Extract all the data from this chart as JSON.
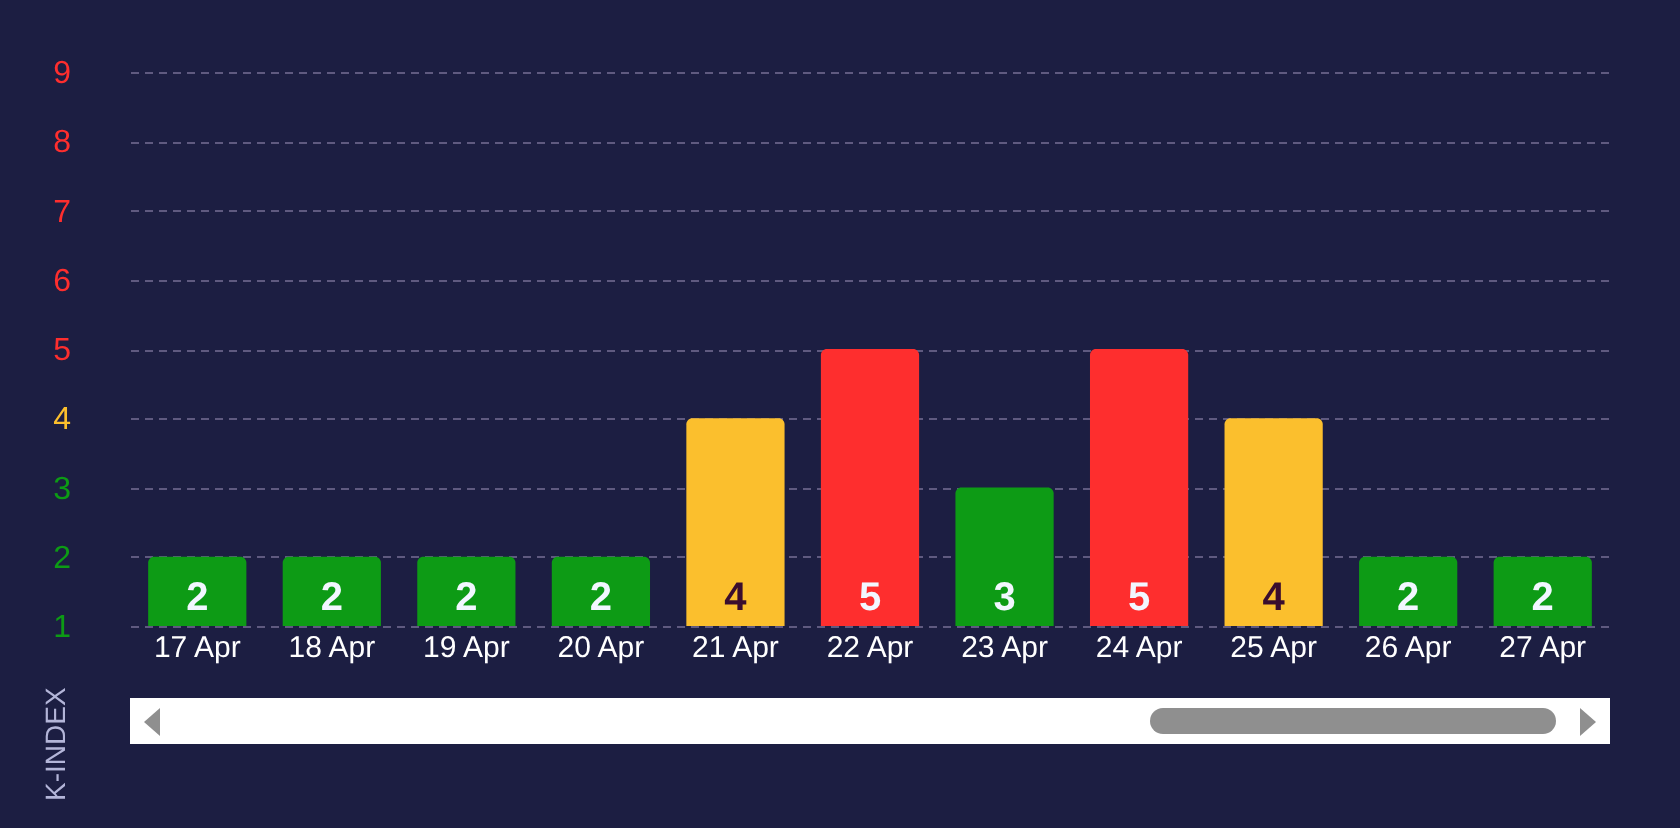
{
  "chart_data": {
    "type": "bar",
    "ylabel": "K-INDEX",
    "categories": [
      "17 Apr",
      "18 Apr",
      "19 Apr",
      "20 Apr",
      "21 Apr",
      "22 Apr",
      "23 Apr",
      "24 Apr",
      "25 Apr",
      "26 Apr",
      "27 Apr"
    ],
    "values": [
      2,
      2,
      2,
      2,
      4,
      5,
      3,
      5,
      4,
      2,
      2
    ],
    "colors": [
      "#0d9b15",
      "#0d9b15",
      "#0d9b15",
      "#0d9b15",
      "#fbbf2d",
      "#fe2e2e",
      "#0d9b15",
      "#fe2e2e",
      "#fbbf2d",
      "#0d9b15",
      "#0d9b15"
    ],
    "ylim": [
      1,
      9
    ],
    "yticks": [
      1,
      2,
      3,
      4,
      5,
      6,
      7,
      8,
      9
    ],
    "grid": "y",
    "data_labels": true
  }
}
